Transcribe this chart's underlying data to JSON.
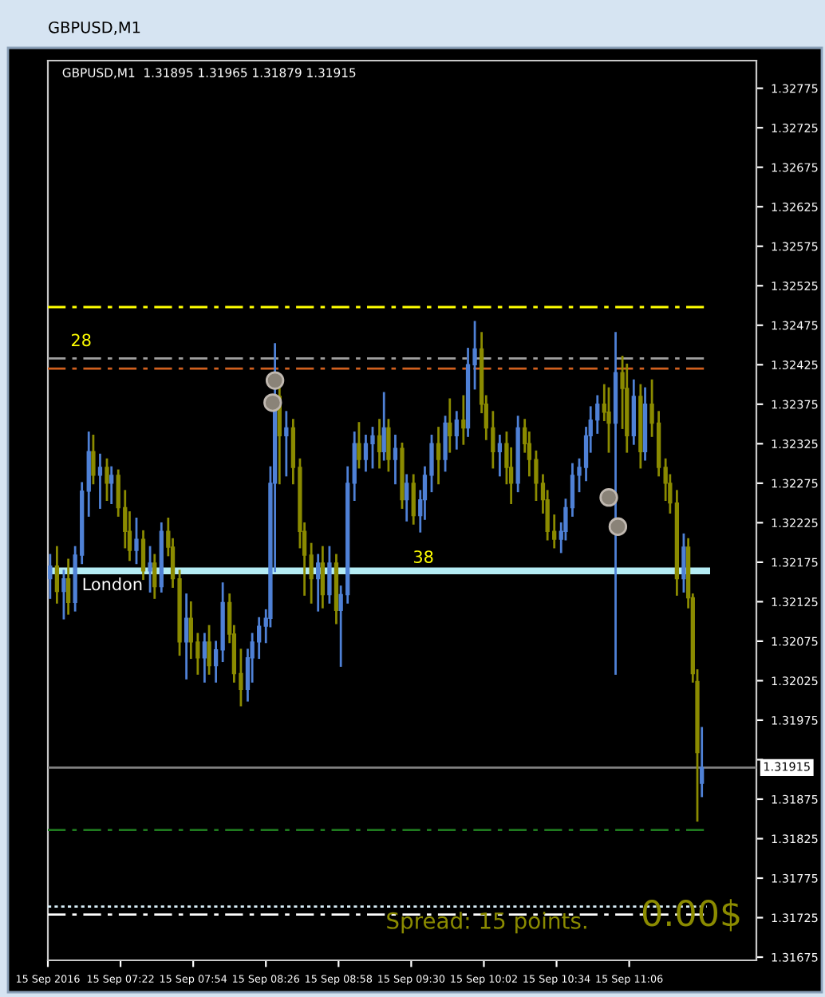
{
  "chart_data": {
    "type": "candlestick",
    "title": "GBPUSD,M1",
    "subtitle": "GBPUSD,M1  1.31895 1.31965 1.31879 1.31915",
    "x": [
      "2016-09-15T06:51",
      "2016-09-15T06:54",
      "2016-09-15T06:57",
      "2016-09-15T06:59",
      "2016-09-15T07:02",
      "2016-09-15T07:05",
      "2016-09-15T07:08",
      "2016-09-15T07:10",
      "2016-09-15T07:13",
      "2016-09-15T07:16",
      "2016-09-15T07:18",
      "2016-09-15T07:21",
      "2016-09-15T07:24",
      "2016-09-15T07:26",
      "2016-09-15T07:29",
      "2016-09-15T07:32",
      "2016-09-15T07:35",
      "2016-09-15T07:37",
      "2016-09-15T07:40",
      "2016-09-15T07:43",
      "2016-09-15T07:45",
      "2016-09-15T07:48",
      "2016-09-15T07:51",
      "2016-09-15T07:53",
      "2016-09-15T07:56",
      "2016-09-15T07:59",
      "2016-09-15T08:01",
      "2016-09-15T08:04",
      "2016-09-15T08:07",
      "2016-09-15T08:10",
      "2016-09-15T08:12",
      "2016-09-15T08:15",
      "2016-09-15T08:18",
      "2016-09-15T08:20",
      "2016-09-15T08:23",
      "2016-09-15T08:26",
      "2016-09-15T08:28",
      "2016-09-15T08:30",
      "2016-09-15T08:32",
      "2016-09-15T08:35",
      "2016-09-15T08:38",
      "2016-09-15T08:41",
      "2016-09-15T08:43",
      "2016-09-15T08:46",
      "2016-09-15T08:49",
      "2016-09-15T08:51",
      "2016-09-15T08:54",
      "2016-09-15T08:57",
      "2016-09-15T08:59",
      "2016-09-15T09:02",
      "2016-09-15T09:05",
      "2016-09-15T09:07",
      "2016-09-15T09:10",
      "2016-09-15T09:13",
      "2016-09-15T09:16",
      "2016-09-15T09:18",
      "2016-09-15T09:20",
      "2016-09-15T09:23",
      "2016-09-15T09:26",
      "2016-09-15T09:28",
      "2016-09-15T09:31",
      "2016-09-15T09:34",
      "2016-09-15T09:36",
      "2016-09-15T09:39",
      "2016-09-15T09:42",
      "2016-09-15T09:45",
      "2016-09-15T09:47",
      "2016-09-15T09:50",
      "2016-09-15T09:53",
      "2016-09-15T09:55",
      "2016-09-15T09:58",
      "2016-09-15T10:01",
      "2016-09-15T10:03",
      "2016-09-15T10:06",
      "2016-09-15T10:09",
      "2016-09-15T10:12",
      "2016-09-15T10:14",
      "2016-09-15T10:17",
      "2016-09-15T10:20",
      "2016-09-15T10:22",
      "2016-09-15T10:25",
      "2016-09-15T10:28",
      "2016-09-15T10:30",
      "2016-09-15T10:33",
      "2016-09-15T10:36",
      "2016-09-15T10:38",
      "2016-09-15T10:41",
      "2016-09-15T10:44",
      "2016-09-15T10:47",
      "2016-09-15T10:49",
      "2016-09-15T10:52",
      "2016-09-15T10:55",
      "2016-09-15T10:57",
      "2016-09-15T11:00",
      "2016-09-15T11:03",
      "2016-09-15T11:05",
      "2016-09-15T11:08",
      "2016-09-15T11:11",
      "2016-09-15T11:13",
      "2016-09-15T11:16",
      "2016-09-15T11:19",
      "2016-09-15T11:22",
      "2016-09-15T11:24",
      "2016-09-15T11:27",
      "2016-09-15T11:30",
      "2016-09-15T11:32",
      "2016-09-15T11:34",
      "2016-09-15T11:36",
      "2016-09-15T11:38"
    ],
    "ohlc": [
      [
        1.32154,
        1.32184,
        1.3213,
        1.3217
      ],
      [
        1.3217,
        1.32194,
        1.32124,
        1.32138
      ],
      [
        1.32138,
        1.32164,
        1.32104,
        1.32154
      ],
      [
        1.32154,
        1.32178,
        1.3211,
        1.32124
      ],
      [
        1.32124,
        1.32194,
        1.32114,
        1.32184
      ],
      [
        1.32184,
        1.32275,
        1.32174,
        1.32265
      ],
      [
        1.32265,
        1.32339,
        1.32234,
        1.32315
      ],
      [
        1.32315,
        1.32335,
        1.32275,
        1.32285
      ],
      [
        1.32285,
        1.32311,
        1.32244,
        1.32295
      ],
      [
        1.32295,
        1.32305,
        1.32254,
        1.32275
      ],
      [
        1.32275,
        1.32295,
        1.3225,
        1.32285
      ],
      [
        1.32285,
        1.32291,
        1.32234,
        1.32244
      ],
      [
        1.32244,
        1.32265,
        1.32194,
        1.32214
      ],
      [
        1.32214,
        1.32238,
        1.32178,
        1.3219
      ],
      [
        1.3219,
        1.3223,
        1.32174,
        1.32204
      ],
      [
        1.32204,
        1.32214,
        1.32154,
        1.32164
      ],
      [
        1.32164,
        1.32194,
        1.32138,
        1.32174
      ],
      [
        1.32174,
        1.32184,
        1.3213,
        1.32144
      ],
      [
        1.32144,
        1.32224,
        1.32138,
        1.32214
      ],
      [
        1.32214,
        1.3223,
        1.32184,
        1.32194
      ],
      [
        1.32194,
        1.32204,
        1.32144,
        1.32154
      ],
      [
        1.32154,
        1.32164,
        1.32058,
        1.32074
      ],
      [
        1.32074,
        1.32134,
        1.32028,
        1.32104
      ],
      [
        1.32104,
        1.32124,
        1.32054,
        1.32074
      ],
      [
        1.32074,
        1.32084,
        1.32034,
        1.32054
      ],
      [
        1.32054,
        1.32084,
        1.32024,
        1.32074
      ],
      [
        1.32074,
        1.32094,
        1.32034,
        1.32044
      ],
      [
        1.32044,
        1.32074,
        1.32024,
        1.32064
      ],
      [
        1.32064,
        1.32148,
        1.3205,
        1.32124
      ],
      [
        1.32124,
        1.32134,
        1.32074,
        1.32084
      ],
      [
        1.32084,
        1.32094,
        1.32024,
        1.32034
      ],
      [
        1.32034,
        1.32064,
        1.31994,
        1.32014
      ],
      [
        1.32014,
        1.32064,
        1.32,
        1.32054
      ],
      [
        1.32054,
        1.32084,
        1.32024,
        1.32074
      ],
      [
        1.32074,
        1.32104,
        1.32054,
        1.32094
      ],
      [
        1.32094,
        1.32114,
        1.32074,
        1.32104
      ],
      [
        1.32104,
        1.32295,
        1.32094,
        1.32275
      ],
      [
        1.32275,
        1.32451,
        1.32164,
        1.32385
      ],
      [
        1.32385,
        1.32395,
        1.32275,
        1.32335
      ],
      [
        1.32335,
        1.32365,
        1.32285,
        1.32345
      ],
      [
        1.32345,
        1.32355,
        1.32275,
        1.32295
      ],
      [
        1.32295,
        1.32305,
        1.32194,
        1.32214
      ],
      [
        1.32214,
        1.32224,
        1.32134,
        1.32184
      ],
      [
        1.32184,
        1.32198,
        1.32124,
        1.32154
      ],
      [
        1.32154,
        1.32184,
        1.32114,
        1.32174
      ],
      [
        1.32174,
        1.32194,
        1.32118,
        1.32134
      ],
      [
        1.32134,
        1.32194,
        1.32124,
        1.32174
      ],
      [
        1.32174,
        1.32184,
        1.32098,
        1.32114
      ],
      [
        1.32114,
        1.32144,
        1.32044,
        1.32134
      ],
      [
        1.32134,
        1.32295,
        1.32124,
        1.32275
      ],
      [
        1.32275,
        1.32339,
        1.32254,
        1.32325
      ],
      [
        1.32325,
        1.32351,
        1.32295,
        1.32305
      ],
      [
        1.32305,
        1.32335,
        1.32291,
        1.32325
      ],
      [
        1.32325,
        1.32345,
        1.32295,
        1.32335
      ],
      [
        1.32335,
        1.32355,
        1.32295,
        1.32315
      ],
      [
        1.32315,
        1.32389,
        1.32305,
        1.32345
      ],
      [
        1.32345,
        1.32355,
        1.32291,
        1.32305
      ],
      [
        1.32305,
        1.32335,
        1.32275,
        1.32319
      ],
      [
        1.32319,
        1.32325,
        1.32244,
        1.32254
      ],
      [
        1.32254,
        1.32285,
        1.32228,
        1.32275
      ],
      [
        1.32275,
        1.32285,
        1.32224,
        1.32234
      ],
      [
        1.32234,
        1.32265,
        1.32214,
        1.32254
      ],
      [
        1.32254,
        1.32295,
        1.3223,
        1.32285
      ],
      [
        1.32285,
        1.32335,
        1.32265,
        1.32325
      ],
      [
        1.32325,
        1.32345,
        1.32275,
        1.32305
      ],
      [
        1.32305,
        1.32359,
        1.32291,
        1.32351
      ],
      [
        1.32351,
        1.32381,
        1.32315,
        1.32335
      ],
      [
        1.32335,
        1.32365,
        1.32319,
        1.32355
      ],
      [
        1.32355,
        1.32385,
        1.32325,
        1.32345
      ],
      [
        1.32345,
        1.32445,
        1.32335,
        1.32425
      ],
      [
        1.32425,
        1.32479,
        1.32395,
        1.32445
      ],
      [
        1.32445,
        1.32465,
        1.32365,
        1.32375
      ],
      [
        1.32375,
        1.32385,
        1.32331,
        1.32345
      ],
      [
        1.32345,
        1.32365,
        1.32295,
        1.32315
      ],
      [
        1.32315,
        1.32335,
        1.32285,
        1.32325
      ],
      [
        1.32325,
        1.32339,
        1.32275,
        1.32295
      ],
      [
        1.32295,
        1.32319,
        1.3225,
        1.32275
      ],
      [
        1.32275,
        1.32359,
        1.32265,
        1.32345
      ],
      [
        1.32345,
        1.32355,
        1.32315,
        1.32325
      ],
      [
        1.32325,
        1.32339,
        1.32285,
        1.32305
      ],
      [
        1.32305,
        1.32315,
        1.32254,
        1.32275
      ],
      [
        1.32275,
        1.32285,
        1.32238,
        1.32254
      ],
      [
        1.32254,
        1.32265,
        1.32204,
        1.32214
      ],
      [
        1.32214,
        1.32234,
        1.32194,
        1.32204
      ],
      [
        1.32204,
        1.32224,
        1.32188,
        1.32214
      ],
      [
        1.32214,
        1.32254,
        1.32204,
        1.32244
      ],
      [
        1.32244,
        1.32299,
        1.32234,
        1.32285
      ],
      [
        1.32285,
        1.32305,
        1.32265,
        1.32295
      ],
      [
        1.32295,
        1.32345,
        1.32279,
        1.32335
      ],
      [
        1.32335,
        1.32371,
        1.32315,
        1.32355
      ],
      [
        1.32355,
        1.32385,
        1.32339,
        1.32375
      ],
      [
        1.32375,
        1.32399,
        1.32355,
        1.32365
      ],
      [
        1.32365,
        1.32395,
        1.32315,
        1.32351
      ],
      [
        1.32351,
        1.32465,
        1.32034,
        1.32415
      ],
      [
        1.32415,
        1.32435,
        1.32345,
        1.32395
      ],
      [
        1.32395,
        1.32425,
        1.32315,
        1.32335
      ],
      [
        1.32335,
        1.32405,
        1.32325,
        1.32385
      ],
      [
        1.32385,
        1.32399,
        1.32295,
        1.32315
      ],
      [
        1.32315,
        1.32395,
        1.32305,
        1.32375
      ],
      [
        1.32375,
        1.32405,
        1.32335,
        1.32351
      ],
      [
        1.32351,
        1.32365,
        1.32285,
        1.32295
      ],
      [
        1.32295,
        1.32305,
        1.32254,
        1.32275
      ],
      [
        1.32275,
        1.32285,
        1.32238,
        1.3225
      ],
      [
        1.3225,
        1.32265,
        1.32134,
        1.32154
      ],
      [
        1.32154,
        1.3221,
        1.32138,
        1.32194
      ],
      [
        1.32194,
        1.32204,
        1.32118,
        1.3213
      ],
      [
        1.3213,
        1.32134,
        1.32024,
        1.32034
      ],
      [
        1.32024,
        1.32038,
        1.31848,
        1.31934
      ],
      [
        1.31895,
        1.31965,
        1.31879,
        1.31915
      ]
    ],
    "colors": [
      "#4f81d6",
      "#8b8b00",
      "#4f81d6",
      "#8b8b00",
      "#4f81d6",
      "#4f81d6",
      "#4f81d6",
      "#8b8b00",
      "#4f81d6",
      "#8b8b00",
      "#4f81d6",
      "#8b8b00",
      "#8b8b00",
      "#8b8b00",
      "#4f81d6",
      "#8b8b00",
      "#4f81d6",
      "#8b8b00",
      "#4f81d6",
      "#8b8b00",
      "#8b8b00",
      "#8b8b00",
      "#4f81d6",
      "#8b8b00",
      "#8b8b00",
      "#4f81d6",
      "#8b8b00",
      "#4f81d6",
      "#4f81d6",
      "#8b8b00",
      "#8b8b00",
      "#8b8b00",
      "#4f81d6",
      "#4f81d6",
      "#4f81d6",
      "#4f81d6",
      "#4f81d6",
      "#4f81d6",
      "#8b8b00",
      "#4f81d6",
      "#8b8b00",
      "#8b8b00",
      "#8b8b00",
      "#8b8b00",
      "#4f81d6",
      "#8b8b00",
      "#4f81d6",
      "#8b8b00",
      "#4f81d6",
      "#4f81d6",
      "#4f81d6",
      "#8b8b00",
      "#4f81d6",
      "#4f81d6",
      "#8b8b00",
      "#4f81d6",
      "#8b8b00",
      "#4f81d6",
      "#8b8b00",
      "#4f81d6",
      "#8b8b00",
      "#4f81d6",
      "#4f81d6",
      "#4f81d6",
      "#8b8b00",
      "#4f81d6",
      "#8b8b00",
      "#4f81d6",
      "#8b8b00",
      "#4f81d6",
      "#4f81d6",
      "#8b8b00",
      "#8b8b00",
      "#8b8b00",
      "#4f81d6",
      "#8b8b00",
      "#8b8b00",
      "#4f81d6",
      "#8b8b00",
      "#8b8b00",
      "#8b8b00",
      "#8b8b00",
      "#8b8b00",
      "#8b8b00",
      "#4f81d6",
      "#4f81d6",
      "#4f81d6",
      "#4f81d6",
      "#4f81d6",
      "#4f81d6",
      "#4f81d6",
      "#8b8b00",
      "#8b8b00",
      "#4f81d6",
      "#8b8b00",
      "#8b8b00",
      "#4f81d6",
      "#8b8b00",
      "#4f81d6",
      "#8b8b00",
      "#8b8b00",
      "#8b8b00",
      "#8b8b00",
      "#8b8b00",
      "#4f81d6",
      "#8b8b00",
      "#8b8b00",
      "#8b8b00",
      "#4f81d6"
    ],
    "series": [
      {
        "type": "scatter",
        "color": "#8a8378",
        "marker": "circle",
        "x": [
          "2016-09-15T08:29",
          "2016-09-15T08:30",
          "2016-09-15T10:57",
          "2016-09-15T11:01"
        ],
        "values": [
          1.32377,
          1.32405,
          1.32257,
          1.3222
        ]
      }
    ],
    "xlim": [
      "2016-09-15T06:50",
      "2016-09-15T12:02"
    ],
    "xticks": [
      {
        "value": "2016-09-15T06:50",
        "label": "15 Sep 2016"
      },
      {
        "value": "2016-09-15T07:22",
        "label": "15 Sep 07:22"
      },
      {
        "value": "2016-09-15T07:54",
        "label": "15 Sep 07:54"
      },
      {
        "value": "2016-09-15T08:26",
        "label": "15 Sep 08:26"
      },
      {
        "value": "2016-09-15T08:58",
        "label": "15 Sep 08:58"
      },
      {
        "value": "2016-09-15T09:30",
        "label": "15 Sep 09:30"
      },
      {
        "value": "2016-09-15T10:02",
        "label": "15 Sep 10:02"
      },
      {
        "value": "2016-09-15T10:34",
        "label": "15 Sep 10:34"
      },
      {
        "value": "2016-09-15T11:06",
        "label": "15 Sep 11:06"
      }
    ],
    "ylim": [
      1.31671,
      1.3281
    ],
    "yticks": [
      1.31675,
      1.31725,
      1.31775,
      1.31825,
      1.31875,
      {
        "value": 1.31925,
        "label": null
      },
      1.31975,
      1.32025,
      1.32075,
      1.32125,
      1.32175,
      1.32225,
      1.32275,
      1.32325,
      1.32375,
      1.32425,
      1.32475,
      1.32525,
      1.32575,
      1.32625,
      1.32675,
      1.32725,
      1.32775
    ],
    "ref_lines": [
      {
        "axis": "y",
        "value": 1.32498,
        "color": "#ffff00",
        "line_style": "dashed"
      },
      {
        "axis": "y",
        "value": 1.32433,
        "color": "#a0a0a0",
        "line_style": "dashed"
      },
      {
        "axis": "y",
        "value": 1.3242,
        "color": "#d2601e",
        "line_style": "dashed"
      },
      {
        "axis": "y",
        "value": 1.32164,
        "color": "#b4ecf4",
        "line_style": "solid"
      },
      {
        "axis": "y",
        "value": 1.31915,
        "color": "#808080",
        "line_style": "solid",
        "label": "1.31915"
      },
      {
        "axis": "y",
        "value": 1.31836,
        "color": "#1f7a1f",
        "line_style": "dashed"
      },
      {
        "axis": "y",
        "value": 1.31739,
        "color": "#d8eef8",
        "line_style": "dotted"
      },
      {
        "axis": "y",
        "value": 1.31729,
        "color": "#ffffff",
        "line_style": "dashed"
      }
    ],
    "annotations": [
      {
        "text": "28",
        "x": "2016-09-15T07:00",
        "y": 1.32433
      },
      {
        "text": "London",
        "x": "2016-09-15T07:05",
        "y": 1.32164
      },
      "38",
      "Spread: 15 points.",
      "0.00$"
    ]
  }
}
